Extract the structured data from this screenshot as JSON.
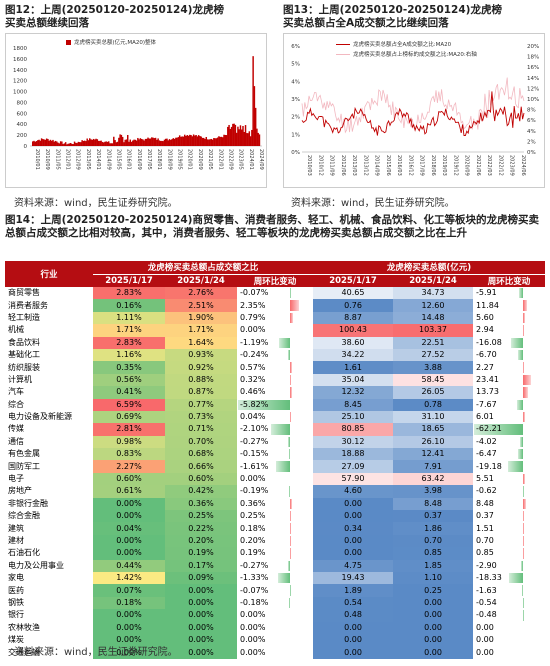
{
  "fig12": {
    "title_line1": "图12：上周(20250120-20250124)龙虎榜",
    "title_line2": "买卖总额继续回落",
    "legend": "龙虎榜买卖总额(亿元,MA20)整体",
    "source": "资料来源：wind，民生证券研究院。",
    "chart_data": {
      "type": "bar",
      "ylim": [
        0,
        1800
      ],
      "yticks": [
        "1800",
        "1600",
        "1400",
        "1200",
        "1000",
        "800",
        "600",
        "400",
        "200",
        "0"
      ],
      "xticks": [
        "2010/01",
        "2010/09",
        "2011/05",
        "2012/01",
        "2012/09",
        "2013/05",
        "2014/01",
        "2014/09",
        "2015/05",
        "2016/01",
        "2016/09",
        "2017/05",
        "2018/01",
        "2018/09",
        "2019/05",
        "2020/01",
        "2020/09",
        "2021/05",
        "2022/01",
        "2022/09",
        "2023/05",
        "2024/01",
        "2024/09"
      ],
      "color": "#c00000"
    }
  },
  "fig13": {
    "title_line1": "图13：上周(20250120-20250124)龙虎榜",
    "title_line2": "买卖总额占全A成交额之比继续回落",
    "legend1": "龙虎榜买卖总额占全A成交额之比:MA20",
    "legend2": "龙虎榜买卖总额占上榜标的成交额之比:MA20:右轴",
    "source": "资料来源：wind，民生证券研究院。",
    "chart_data": {
      "type": "line",
      "ylim_left": [
        0,
        6
      ],
      "yticks_left": [
        "6%",
        "5%",
        "4%",
        "3%",
        "2%",
        "1%",
        "0%"
      ],
      "ylim_right": [
        0,
        20
      ],
      "yticks_right": [
        "20%",
        "18%",
        "16%",
        "14%",
        "12%",
        "10%",
        "8%",
        "6%",
        "4%",
        "2%",
        "0%"
      ],
      "xticks": [
        "2010/03",
        "2010/12",
        "2011/09",
        "2012/06",
        "2013/03",
        "2013/12",
        "2014/09",
        "2015/06",
        "2016/03",
        "2016/12",
        "2017/09",
        "2018/06",
        "2019/03",
        "2019/12",
        "2020/09",
        "2021/06",
        "2022/03",
        "2022/12",
        "2023/09",
        "2024/06"
      ],
      "series": [
        {
          "name": "龙虎榜买卖总额占全A成交额之比:MA20",
          "color": "#c00000"
        },
        {
          "name": "龙虎榜买卖总额占上榜标的成交额之比:MA20:右轴",
          "color": "#f2b8c0"
        }
      ]
    }
  },
  "fig14": {
    "title": "图14：上周(20250120-20250124)商贸零售、消费者服务、轻工、机械、食品饮料、化工等板块的龙虎榜买卖总额占成交额之比相对较高，其中，消费者服务、轻工等板块的龙虎榜买卖总额占成交额之比在上升",
    "source": "资料来源：wind，民生证券研究院。",
    "table": {
      "col_industry": "行业",
      "group1": "龙虎榜买卖总额占成交额之比",
      "group2": "龙虎榜买卖总额(亿元)",
      "d1": "2025/1/17",
      "d2": "2025/1/24",
      "chg": "周环比变动",
      "rows": [
        {
          "ind": "商贸零售",
          "r1": "2.83%",
          "r2": "2.76%",
          "c1": "-0.07%",
          "a1": "40.65",
          "a2": "34.73",
          "c2": "-5.91"
        },
        {
          "ind": "消费者服务",
          "r1": "0.16%",
          "r2": "2.51%",
          "c1": "2.35%",
          "a1": "0.76",
          "a2": "12.60",
          "c2": "11.84"
        },
        {
          "ind": "轻工制造",
          "r1": "1.11%",
          "r2": "1.90%",
          "c1": "0.79%",
          "a1": "8.87",
          "a2": "14.48",
          "c2": "5.60"
        },
        {
          "ind": "机械",
          "r1": "1.71%",
          "r2": "1.71%",
          "c1": "0.00%",
          "a1": "100.43",
          "a2": "103.37",
          "c2": "2.94"
        },
        {
          "ind": "食品饮料",
          "r1": "2.83%",
          "r2": "1.64%",
          "c1": "-1.19%",
          "a1": "38.60",
          "a2": "22.51",
          "c2": "-16.08"
        },
        {
          "ind": "基础化工",
          "r1": "1.16%",
          "r2": "0.93%",
          "c1": "-0.24%",
          "a1": "34.22",
          "a2": "27.52",
          "c2": "-6.70"
        },
        {
          "ind": "纺织服装",
          "r1": "0.35%",
          "r2": "0.92%",
          "c1": "0.57%",
          "a1": "1.61",
          "a2": "3.88",
          "c2": "2.27"
        },
        {
          "ind": "计算机",
          "r1": "0.56%",
          "r2": "0.88%",
          "c1": "0.32%",
          "a1": "35.04",
          "a2": "58.45",
          "c2": "23.41"
        },
        {
          "ind": "汽车",
          "r1": "0.41%",
          "r2": "0.87%",
          "c1": "0.46%",
          "a1": "12.32",
          "a2": "26.05",
          "c2": "13.73"
        },
        {
          "ind": "综合",
          "r1": "6.59%",
          "r2": "0.77%",
          "c1": "-5.82%",
          "a1": "8.45",
          "a2": "0.78",
          "c2": "-7.67"
        },
        {
          "ind": "电力设备及新能源",
          "r1": "0.69%",
          "r2": "0.73%",
          "c1": "0.04%",
          "a1": "25.10",
          "a2": "31.10",
          "c2": "6.01"
        },
        {
          "ind": "传媒",
          "r1": "2.81%",
          "r2": "0.71%",
          "c1": "-2.10%",
          "a1": "80.85",
          "a2": "18.65",
          "c2": "-62.21"
        },
        {
          "ind": "通信",
          "r1": "0.98%",
          "r2": "0.70%",
          "c1": "-0.27%",
          "a1": "30.12",
          "a2": "26.10",
          "c2": "-4.02"
        },
        {
          "ind": "有色金属",
          "r1": "0.83%",
          "r2": "0.68%",
          "c1": "-0.15%",
          "a1": "18.88",
          "a2": "12.41",
          "c2": "-6.47"
        },
        {
          "ind": "国防军工",
          "r1": "2.27%",
          "r2": "0.66%",
          "c1": "-1.61%",
          "a1": "27.09",
          "a2": "7.91",
          "c2": "-19.18"
        },
        {
          "ind": "电子",
          "r1": "0.60%",
          "r2": "0.60%",
          "c1": "0.00%",
          "a1": "57.90",
          "a2": "63.42",
          "c2": "5.51"
        },
        {
          "ind": "房地产",
          "r1": "0.61%",
          "r2": "0.42%",
          "c1": "-0.19%",
          "a1": "4.60",
          "a2": "3.98",
          "c2": "-0.62"
        },
        {
          "ind": "非银行金融",
          "r1": "0.00%",
          "r2": "0.36%",
          "c1": "0.36%",
          "a1": "0.00",
          "a2": "8.48",
          "c2": "8.48"
        },
        {
          "ind": "综合金融",
          "r1": "0.00%",
          "r2": "0.25%",
          "c1": "0.25%",
          "a1": "0.00",
          "a2": "0.37",
          "c2": "0.37"
        },
        {
          "ind": "建筑",
          "r1": "0.04%",
          "r2": "0.22%",
          "c1": "0.18%",
          "a1": "0.34",
          "a2": "1.86",
          "c2": "1.51"
        },
        {
          "ind": "建材",
          "r1": "0.00%",
          "r2": "0.20%",
          "c1": "0.20%",
          "a1": "0.00",
          "a2": "0.70",
          "c2": "0.70"
        },
        {
          "ind": "石油石化",
          "r1": "0.00%",
          "r2": "0.19%",
          "c1": "0.19%",
          "a1": "0.00",
          "a2": "0.85",
          "c2": "0.85"
        },
        {
          "ind": "电力及公用事业",
          "r1": "0.44%",
          "r2": "0.17%",
          "c1": "-0.27%",
          "a1": "4.75",
          "a2": "1.85",
          "c2": "-2.90"
        },
        {
          "ind": "家电",
          "r1": "1.42%",
          "r2": "0.09%",
          "c1": "-1.33%",
          "a1": "19.43",
          "a2": "1.10",
          "c2": "-18.33"
        },
        {
          "ind": "医药",
          "r1": "0.07%",
          "r2": "0.00%",
          "c1": "-0.07%",
          "a1": "1.89",
          "a2": "0.25",
          "c2": "-1.63"
        },
        {
          "ind": "钢铁",
          "r1": "0.18%",
          "r2": "0.00%",
          "c1": "-0.18%",
          "a1": "0.54",
          "a2": "0.00",
          "c2": "-0.54"
        },
        {
          "ind": "银行",
          "r1": "0.00%",
          "r2": "0.00%",
          "c1": "0.00%",
          "a1": "0.48",
          "a2": "0.00",
          "c2": "-0.48"
        },
        {
          "ind": "农林牧渔",
          "r1": "0.00%",
          "r2": "0.00%",
          "c1": "0.00%",
          "a1": "0.00",
          "a2": "0.00",
          "c2": "0.00"
        },
        {
          "ind": "煤炭",
          "r1": "0.00%",
          "r2": "0.00%",
          "c1": "0.00%",
          "a1": "0.00",
          "a2": "0.00",
          "c2": "0.00"
        },
        {
          "ind": "交通运输",
          "r1": "0.00%",
          "r2": "0.00%",
          "c1": "0.00%",
          "a1": "0.00",
          "a2": "0.00",
          "c2": "0.00"
        }
      ]
    }
  }
}
